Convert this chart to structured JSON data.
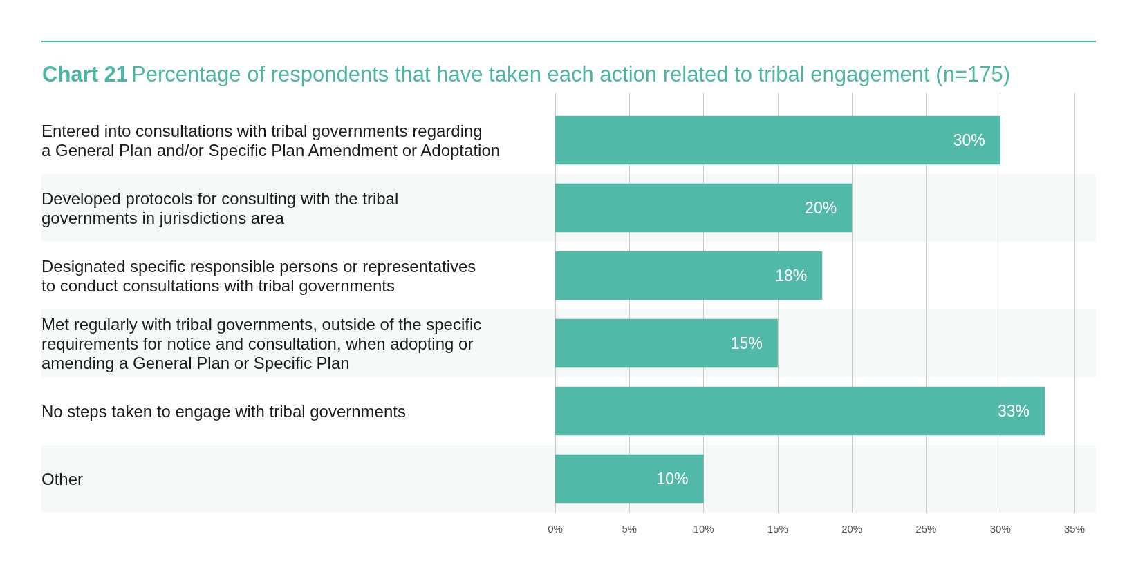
{
  "chart_data": {
    "type": "bar",
    "orientation": "horizontal",
    "title": "Chart 21 Percentage of respondents that have taken each action related to tribal engagement (n=175)",
    "categories": [
      "Entered into consultations with tribal governments regarding\na General Plan and/or Specific Plan Amendment or Adoptation",
      "Developed protocols for consulting with the tribal\ngovernments in jurisdictions area",
      "Designated specific responsible persons or representatives\nto conduct consultations with tribal governments",
      "Met regularly with tribal governments, outside of the specific\nrequirements for notice and consultation, when adopting or\namending a General Plan or Specific Plan",
      "No steps taken to engage with tribal governments",
      "Other"
    ],
    "values": [
      30,
      20,
      18,
      15,
      33,
      10
    ],
    "color": "#52b8a8",
    "value_labels": [
      "30%",
      "20%",
      "18%",
      "15%",
      "33%",
      "10%"
    ],
    "xlim": [
      0,
      35
    ],
    "xticks": [
      {
        "value": 0,
        "label": "0%"
      },
      {
        "value": 5,
        "label": "5%"
      },
      {
        "value": 10,
        "label": "10%"
      },
      {
        "value": 15,
        "label": "15%"
      },
      {
        "value": 20,
        "label": "20%"
      },
      {
        "value": 25,
        "label": "25%"
      },
      {
        "value": 30,
        "label": "30%"
      },
      {
        "value": 35,
        "label": "35%"
      }
    ],
    "grid": "x"
  }
}
